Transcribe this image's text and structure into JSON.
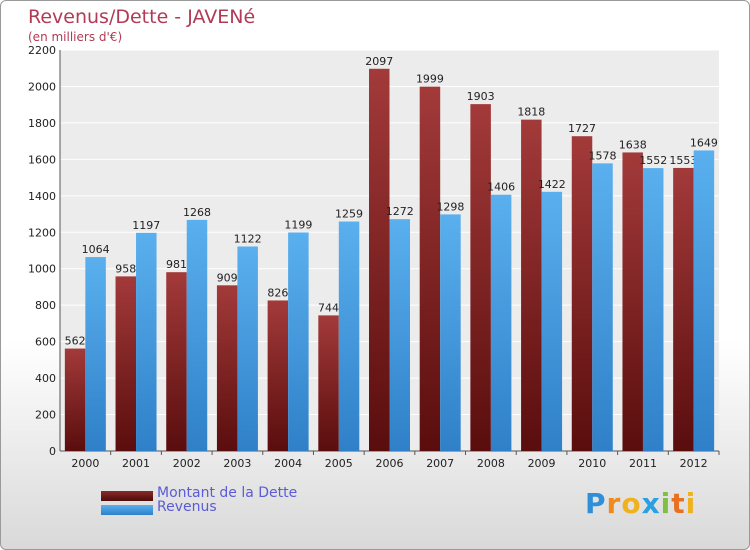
{
  "chart_data": {
    "type": "bar",
    "title": "Revenus/Dette - JAVENé",
    "subtitle": "(en milliers d'€)",
    "categories": [
      "2000",
      "2001",
      "2002",
      "2003",
      "2004",
      "2005",
      "2006",
      "2007",
      "2008",
      "2009",
      "2010",
      "2011",
      "2012"
    ],
    "series": [
      {
        "name": "Montant de la Dette",
        "color": "#7a1e1e",
        "values": [
          562,
          958,
          981,
          909,
          826,
          744,
          2097,
          1999,
          1903,
          1818,
          1727,
          1638,
          1553
        ]
      },
      {
        "name": "Revenus",
        "color": "#3f97dc",
        "values": [
          1064,
          1197,
          1268,
          1122,
          1199,
          1259,
          1272,
          1298,
          1406,
          1422,
          1578,
          1552,
          1649
        ]
      }
    ],
    "data_labels": {
      "Montant de la Dette": [
        "562",
        "958",
        "981",
        "909",
        "826",
        "744",
        "2097",
        "1999",
        "1903",
        "1818",
        "1727",
        "1638",
        "1553"
      ],
      "Revenus": [
        "1064",
        "1197",
        "1268",
        "1122",
        "1199",
        "1259",
        "1272",
        "1298",
        "1406",
        "1422",
        "1578",
        "1552",
        "1649"
      ]
    },
    "ylim": [
      0,
      2200
    ],
    "yticks": [
      "0",
      "200",
      "400",
      "600",
      "800",
      "1000",
      "1200",
      "1400",
      "1600",
      "1800",
      "2000",
      "2200"
    ],
    "grid": true,
    "legend_position": "bottom-left"
  },
  "logo": {
    "text": "Proxiti",
    "letters": [
      {
        "ch": "P",
        "color": "#2f8fd8"
      },
      {
        "ch": "r",
        "color": "#f08a1c"
      },
      {
        "ch": "o",
        "color": "#f0b21c"
      },
      {
        "ch": "x",
        "color": "#2aa0e0"
      },
      {
        "ch": "i",
        "color": "#80c040"
      },
      {
        "ch": "t",
        "color": "#e87020"
      },
      {
        "ch": "i",
        "color": "#f0b21c"
      }
    ]
  }
}
